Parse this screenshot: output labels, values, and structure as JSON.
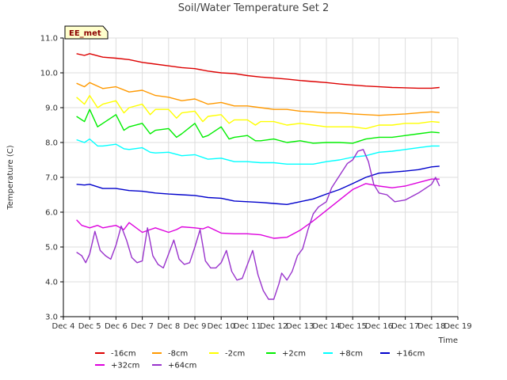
{
  "chart_data": {
    "type": "line",
    "title": "Soil/Water Temperature Set 2",
    "xlabel": "Time",
    "ylabel": "Temperature (C)",
    "xlim": [
      4,
      19
    ],
    "ylim": [
      3.0,
      11.0
    ],
    "x_ticks": [
      4,
      5,
      6,
      7,
      8,
      9,
      10,
      11,
      12,
      13,
      14,
      15,
      16,
      17,
      18,
      19
    ],
    "x_tick_labels": [
      "Dec 4",
      "Dec 5",
      "Dec 6",
      "Dec 7",
      "Dec 8",
      "Dec 9",
      "Dec 10",
      "Dec 11",
      "Dec 12",
      "Dec 13",
      "Dec 14",
      "Dec 15",
      "Dec 16",
      "Dec 17",
      "Dec 18",
      "Dec 19"
    ],
    "y_ticks": [
      3.0,
      4.0,
      5.0,
      6.0,
      7.0,
      8.0,
      9.0,
      10.0,
      11.0
    ],
    "y_tick_labels": [
      "3.0",
      "4.0",
      "5.0",
      "6.0",
      "7.0",
      "8.0",
      "9.0",
      "10.0",
      "11.0"
    ],
    "grid": true,
    "banded_background": true,
    "legend_position": "bottom",
    "annotation": "EE_met",
    "series": [
      {
        "name": "-16cm",
        "color": "#dd0000",
        "points": [
          [
            4.5,
            10.55
          ],
          [
            4.8,
            10.5
          ],
          [
            5.0,
            10.55
          ],
          [
            5.5,
            10.45
          ],
          [
            6.0,
            10.42
          ],
          [
            6.5,
            10.38
          ],
          [
            7.0,
            10.3
          ],
          [
            7.5,
            10.25
          ],
          [
            8.0,
            10.2
          ],
          [
            8.5,
            10.15
          ],
          [
            9.0,
            10.12
          ],
          [
            9.5,
            10.05
          ],
          [
            10.0,
            10.0
          ],
          [
            10.5,
            9.98
          ],
          [
            11.0,
            9.92
          ],
          [
            11.5,
            9.88
          ],
          [
            12.0,
            9.85
          ],
          [
            12.5,
            9.82
          ],
          [
            13.0,
            9.78
          ],
          [
            13.5,
            9.75
          ],
          [
            14.0,
            9.72
          ],
          [
            14.5,
            9.68
          ],
          [
            15.0,
            9.65
          ],
          [
            15.5,
            9.62
          ],
          [
            16.0,
            9.6
          ],
          [
            16.5,
            9.58
          ],
          [
            17.0,
            9.57
          ],
          [
            17.5,
            9.56
          ],
          [
            18.0,
            9.56
          ],
          [
            18.3,
            9.58
          ]
        ]
      },
      {
        "name": "-8cm",
        "color": "#ff9900",
        "points": [
          [
            4.5,
            9.7
          ],
          [
            4.8,
            9.6
          ],
          [
            5.0,
            9.72
          ],
          [
            5.5,
            9.55
          ],
          [
            6.0,
            9.6
          ],
          [
            6.5,
            9.45
          ],
          [
            7.0,
            9.5
          ],
          [
            7.5,
            9.35
          ],
          [
            8.0,
            9.3
          ],
          [
            8.5,
            9.2
          ],
          [
            9.0,
            9.25
          ],
          [
            9.5,
            9.1
          ],
          [
            10.0,
            9.15
          ],
          [
            10.5,
            9.05
          ],
          [
            11.0,
            9.05
          ],
          [
            11.5,
            9.0
          ],
          [
            12.0,
            8.95
          ],
          [
            12.5,
            8.95
          ],
          [
            13.0,
            8.9
          ],
          [
            13.5,
            8.88
          ],
          [
            14.0,
            8.85
          ],
          [
            14.5,
            8.85
          ],
          [
            15.0,
            8.82
          ],
          [
            15.5,
            8.8
          ],
          [
            16.0,
            8.78
          ],
          [
            16.5,
            8.8
          ],
          [
            17.0,
            8.82
          ],
          [
            17.5,
            8.85
          ],
          [
            18.0,
            8.88
          ],
          [
            18.3,
            8.86
          ]
        ]
      },
      {
        "name": "-2cm",
        "color": "#ffff00",
        "points": [
          [
            4.5,
            9.3
          ],
          [
            4.8,
            9.1
          ],
          [
            5.0,
            9.35
          ],
          [
            5.3,
            9.0
          ],
          [
            5.5,
            9.1
          ],
          [
            6.0,
            9.2
          ],
          [
            6.3,
            8.85
          ],
          [
            6.5,
            9.0
          ],
          [
            7.0,
            9.1
          ],
          [
            7.3,
            8.8
          ],
          [
            7.5,
            8.95
          ],
          [
            8.0,
            8.95
          ],
          [
            8.3,
            8.7
          ],
          [
            8.5,
            8.85
          ],
          [
            9.0,
            8.9
          ],
          [
            9.3,
            8.6
          ],
          [
            9.5,
            8.75
          ],
          [
            10.0,
            8.8
          ],
          [
            10.3,
            8.55
          ],
          [
            10.5,
            8.65
          ],
          [
            11.0,
            8.65
          ],
          [
            11.3,
            8.5
          ],
          [
            11.5,
            8.6
          ],
          [
            12.0,
            8.6
          ],
          [
            12.5,
            8.5
          ],
          [
            13.0,
            8.55
          ],
          [
            13.5,
            8.5
          ],
          [
            14.0,
            8.45
          ],
          [
            14.5,
            8.45
          ],
          [
            15.0,
            8.45
          ],
          [
            15.5,
            8.4
          ],
          [
            16.0,
            8.5
          ],
          [
            16.5,
            8.5
          ],
          [
            17.0,
            8.55
          ],
          [
            17.5,
            8.55
          ],
          [
            18.0,
            8.6
          ],
          [
            18.3,
            8.58
          ]
        ]
      },
      {
        "name": "+2cm",
        "color": "#00ee00",
        "points": [
          [
            4.5,
            8.75
          ],
          [
            4.8,
            8.6
          ],
          [
            5.0,
            8.95
          ],
          [
            5.3,
            8.45
          ],
          [
            5.5,
            8.55
          ],
          [
            6.0,
            8.8
          ],
          [
            6.3,
            8.35
          ],
          [
            6.5,
            8.45
          ],
          [
            7.0,
            8.55
          ],
          [
            7.3,
            8.25
          ],
          [
            7.5,
            8.35
          ],
          [
            8.0,
            8.4
          ],
          [
            8.3,
            8.15
          ],
          [
            8.5,
            8.25
          ],
          [
            9.0,
            8.55
          ],
          [
            9.3,
            8.15
          ],
          [
            9.5,
            8.2
          ],
          [
            10.0,
            8.45
          ],
          [
            10.3,
            8.1
          ],
          [
            10.5,
            8.15
          ],
          [
            11.0,
            8.2
          ],
          [
            11.3,
            8.05
          ],
          [
            11.5,
            8.05
          ],
          [
            12.0,
            8.1
          ],
          [
            12.5,
            8.0
          ],
          [
            13.0,
            8.05
          ],
          [
            13.5,
            7.98
          ],
          [
            14.0,
            8.0
          ],
          [
            14.5,
            8.0
          ],
          [
            15.0,
            7.98
          ],
          [
            15.5,
            8.1
          ],
          [
            16.0,
            8.15
          ],
          [
            16.5,
            8.15
          ],
          [
            17.0,
            8.2
          ],
          [
            17.5,
            8.25
          ],
          [
            18.0,
            8.3
          ],
          [
            18.3,
            8.28
          ]
        ]
      },
      {
        "name": "+8cm",
        "color": "#00ffff",
        "points": [
          [
            4.5,
            8.08
          ],
          [
            4.8,
            8.0
          ],
          [
            5.0,
            8.1
          ],
          [
            5.3,
            7.9
          ],
          [
            5.5,
            7.9
          ],
          [
            6.0,
            7.95
          ],
          [
            6.3,
            7.82
          ],
          [
            6.5,
            7.8
          ],
          [
            7.0,
            7.85
          ],
          [
            7.3,
            7.72
          ],
          [
            7.5,
            7.7
          ],
          [
            8.0,
            7.72
          ],
          [
            8.5,
            7.62
          ],
          [
            9.0,
            7.65
          ],
          [
            9.5,
            7.52
          ],
          [
            10.0,
            7.55
          ],
          [
            10.5,
            7.45
          ],
          [
            11.0,
            7.45
          ],
          [
            11.5,
            7.42
          ],
          [
            12.0,
            7.42
          ],
          [
            12.5,
            7.38
          ],
          [
            13.0,
            7.38
          ],
          [
            13.5,
            7.38
          ],
          [
            14.0,
            7.45
          ],
          [
            14.5,
            7.5
          ],
          [
            15.0,
            7.58
          ],
          [
            15.5,
            7.62
          ],
          [
            16.0,
            7.72
          ],
          [
            16.5,
            7.75
          ],
          [
            17.0,
            7.8
          ],
          [
            17.5,
            7.85
          ],
          [
            18.0,
            7.9
          ],
          [
            18.3,
            7.9
          ]
        ]
      },
      {
        "name": "+16cm",
        "color": "#0000cc",
        "points": [
          [
            4.5,
            6.8
          ],
          [
            4.8,
            6.78
          ],
          [
            5.0,
            6.8
          ],
          [
            5.5,
            6.68
          ],
          [
            6.0,
            6.68
          ],
          [
            6.5,
            6.62
          ],
          [
            7.0,
            6.6
          ],
          [
            7.5,
            6.55
          ],
          [
            8.0,
            6.52
          ],
          [
            8.5,
            6.5
          ],
          [
            9.0,
            6.48
          ],
          [
            9.5,
            6.42
          ],
          [
            10.0,
            6.4
          ],
          [
            10.5,
            6.32
          ],
          [
            11.0,
            6.3
          ],
          [
            11.5,
            6.28
          ],
          [
            12.0,
            6.25
          ],
          [
            12.5,
            6.22
          ],
          [
            13.0,
            6.3
          ],
          [
            13.5,
            6.38
          ],
          [
            14.0,
            6.52
          ],
          [
            14.5,
            6.65
          ],
          [
            15.0,
            6.82
          ],
          [
            15.5,
            7.0
          ],
          [
            16.0,
            7.12
          ],
          [
            16.5,
            7.15
          ],
          [
            17.0,
            7.18
          ],
          [
            17.5,
            7.22
          ],
          [
            18.0,
            7.3
          ],
          [
            18.3,
            7.32
          ]
        ]
      },
      {
        "name": "+32cm",
        "color": "#dd00dd",
        "points": [
          [
            4.5,
            5.78
          ],
          [
            4.7,
            5.62
          ],
          [
            5.0,
            5.55
          ],
          [
            5.3,
            5.62
          ],
          [
            5.5,
            5.55
          ],
          [
            6.0,
            5.62
          ],
          [
            6.3,
            5.5
          ],
          [
            6.5,
            5.7
          ],
          [
            7.0,
            5.42
          ],
          [
            7.3,
            5.5
          ],
          [
            7.5,
            5.55
          ],
          [
            8.0,
            5.42
          ],
          [
            8.3,
            5.5
          ],
          [
            8.5,
            5.58
          ],
          [
            9.0,
            5.55
          ],
          [
            9.3,
            5.52
          ],
          [
            9.5,
            5.58
          ],
          [
            10.0,
            5.4
          ],
          [
            10.5,
            5.38
          ],
          [
            11.0,
            5.38
          ],
          [
            11.5,
            5.35
          ],
          [
            12.0,
            5.25
          ],
          [
            12.5,
            5.28
          ],
          [
            13.0,
            5.48
          ],
          [
            13.5,
            5.75
          ],
          [
            14.0,
            6.05
          ],
          [
            14.5,
            6.35
          ],
          [
            15.0,
            6.65
          ],
          [
            15.5,
            6.82
          ],
          [
            16.0,
            6.75
          ],
          [
            16.5,
            6.7
          ],
          [
            17.0,
            6.75
          ],
          [
            17.5,
            6.85
          ],
          [
            18.0,
            6.95
          ],
          [
            18.3,
            6.95
          ]
        ]
      },
      {
        "name": "+64cm",
        "color": "#9933cc",
        "points": [
          [
            4.5,
            4.85
          ],
          [
            4.7,
            4.75
          ],
          [
            4.85,
            4.55
          ],
          [
            5.0,
            4.8
          ],
          [
            5.2,
            5.45
          ],
          [
            5.4,
            4.9
          ],
          [
            5.6,
            4.75
          ],
          [
            5.8,
            4.65
          ],
          [
            6.0,
            5.05
          ],
          [
            6.2,
            5.6
          ],
          [
            6.4,
            5.2
          ],
          [
            6.6,
            4.7
          ],
          [
            6.8,
            4.55
          ],
          [
            7.0,
            4.6
          ],
          [
            7.2,
            5.55
          ],
          [
            7.4,
            4.75
          ],
          [
            7.6,
            4.5
          ],
          [
            7.8,
            4.4
          ],
          [
            8.0,
            4.8
          ],
          [
            8.2,
            5.2
          ],
          [
            8.4,
            4.65
          ],
          [
            8.6,
            4.5
          ],
          [
            8.8,
            4.55
          ],
          [
            9.0,
            5.0
          ],
          [
            9.2,
            5.5
          ],
          [
            9.4,
            4.6
          ],
          [
            9.6,
            4.4
          ],
          [
            9.8,
            4.4
          ],
          [
            10.0,
            4.55
          ],
          [
            10.2,
            4.9
          ],
          [
            10.4,
            4.3
          ],
          [
            10.6,
            4.05
          ],
          [
            10.8,
            4.1
          ],
          [
            11.0,
            4.5
          ],
          [
            11.2,
            4.9
          ],
          [
            11.4,
            4.2
          ],
          [
            11.6,
            3.75
          ],
          [
            11.8,
            3.5
          ],
          [
            12.0,
            3.5
          ],
          [
            12.2,
            3.95
          ],
          [
            12.3,
            4.25
          ],
          [
            12.5,
            4.05
          ],
          [
            12.7,
            4.3
          ],
          [
            12.9,
            4.75
          ],
          [
            13.1,
            4.95
          ],
          [
            13.3,
            5.5
          ],
          [
            13.5,
            5.95
          ],
          [
            13.7,
            6.15
          ],
          [
            14.0,
            6.3
          ],
          [
            14.2,
            6.7
          ],
          [
            14.5,
            7.05
          ],
          [
            14.8,
            7.4
          ],
          [
            15.0,
            7.5
          ],
          [
            15.2,
            7.75
          ],
          [
            15.4,
            7.8
          ],
          [
            15.6,
            7.45
          ],
          [
            15.8,
            6.8
          ],
          [
            16.0,
            6.55
          ],
          [
            16.3,
            6.5
          ],
          [
            16.6,
            6.3
          ],
          [
            17.0,
            6.35
          ],
          [
            17.5,
            6.55
          ],
          [
            17.8,
            6.7
          ],
          [
            18.0,
            6.8
          ],
          [
            18.15,
            7.0
          ],
          [
            18.3,
            6.75
          ]
        ]
      }
    ]
  }
}
